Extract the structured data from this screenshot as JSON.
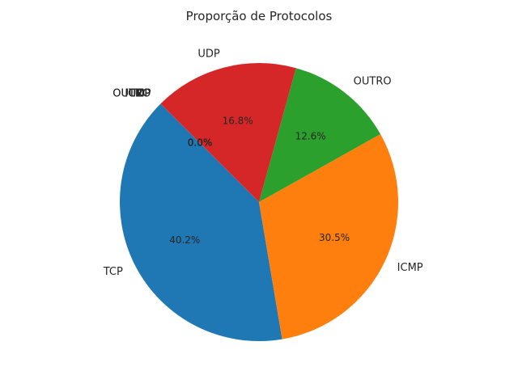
{
  "chart_data": {
    "type": "pie",
    "title": "Proporção de Protocolos",
    "start_angle_deg": 135,
    "direction": "counterclockwise",
    "slices": [
      {
        "label": "TCP",
        "value": 40.2,
        "pct_label": "40.2%",
        "color": "#1f77b4"
      },
      {
        "label": "ICMP",
        "value": 30.5,
        "pct_label": "30.5%",
        "color": "#ff7f0e"
      },
      {
        "label": "OUTRO",
        "value": 12.6,
        "pct_label": "12.6%",
        "color": "#2ca02c"
      },
      {
        "label": "UDP",
        "value": 16.8,
        "pct_label": "16.8%",
        "color": "#d62728"
      }
    ],
    "zero_slices": {
      "labels": [
        "OUTRO",
        "UDP",
        "ICMP",
        "TCP",
        "OUTRO",
        "UDP",
        "ICMP",
        "TCP"
      ],
      "pct_label": "0.0%"
    }
  }
}
